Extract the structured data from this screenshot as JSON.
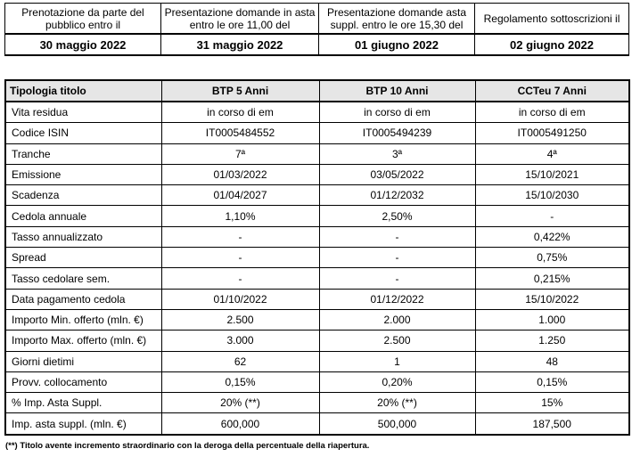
{
  "dates": {
    "columns": [
      {
        "desc": "Prenotazione da parte del pubblico entro il",
        "date": "30 maggio 2022"
      },
      {
        "desc": "Presentazione domande in asta entro le ore 11,00 del",
        "date": "31 maggio 2022"
      },
      {
        "desc": "Presentazione domande asta suppl. entro le ore 15,30 del",
        "date": "01 giugno 2022"
      },
      {
        "desc": "Regolamento sottoscrizioni il",
        "date": "02 giugno 2022"
      }
    ]
  },
  "table": {
    "header": [
      "Tipologia titolo",
      "BTP 5 Anni",
      "BTP 10 Anni",
      "CCTeu 7 Anni"
    ],
    "rows": [
      [
        "Vita residua",
        "in corso di em",
        "in corso di em",
        "in corso di em"
      ],
      [
        "Codice ISIN",
        "IT0005484552",
        "IT0005494239",
        "IT0005491250"
      ],
      [
        "Tranche",
        "7ª",
        "3ª",
        "4ª"
      ],
      [
        "Emissione",
        "01/03/2022",
        "03/05/2022",
        "15/10/2021"
      ],
      [
        "Scadenza",
        "01/04/2027",
        "01/12/2032",
        "15/10/2030"
      ],
      [
        "Cedola annuale",
        "1,10%",
        "2,50%",
        "-"
      ],
      [
        "Tasso annualizzato",
        "-",
        "-",
        "0,422%"
      ],
      [
        "Spread",
        "-",
        "-",
        "0,75%"
      ],
      [
        "Tasso cedolare sem.",
        "-",
        "-",
        "0,215%"
      ],
      [
        "Data pagamento cedola",
        "01/10/2022",
        "01/12/2022",
        "15/10/2022"
      ],
      [
        "Importo Min. offerto (mln. €)",
        "2.500",
        "2.000",
        "1.000"
      ],
      [
        "Importo Max. offerto (mln. €)",
        "3.000",
        "2.500",
        "1.250"
      ],
      [
        "Giorni dietimi",
        "62",
        "1",
        "48"
      ],
      [
        "Provv. collocamento",
        "0,15%",
        "0,20%",
        "0,15%"
      ],
      [
        "% Imp. Asta Suppl.",
        "20% (**)",
        "20% (**)",
        "15%"
      ],
      [
        "Imp. asta suppl. (mln. €)",
        "600,000",
        "500,000",
        "187,500"
      ]
    ]
  },
  "footnote": "(**) Titolo avente incremento straordinario con la deroga della percentuale della riapertura."
}
